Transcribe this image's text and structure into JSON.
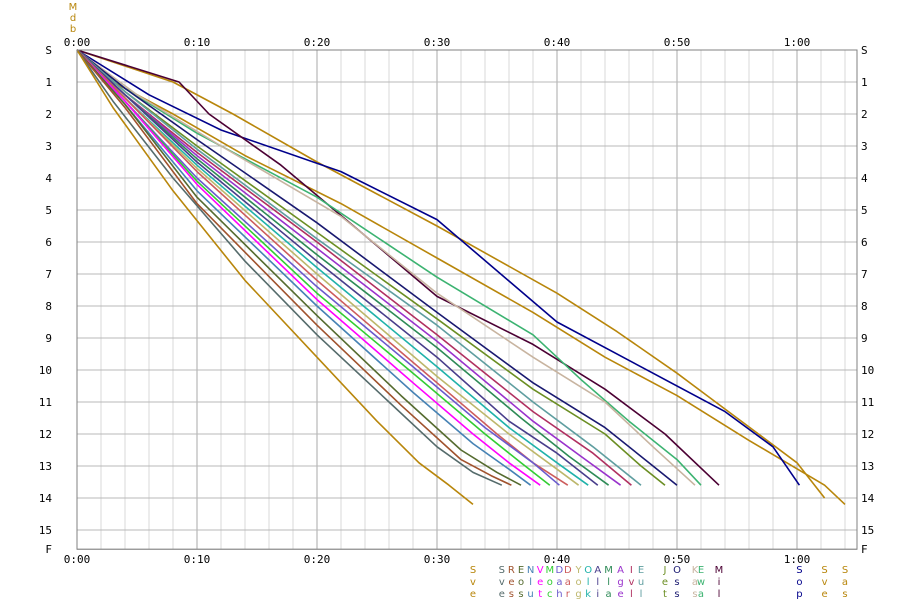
{
  "chart_data": {
    "type": "line",
    "title": "",
    "xlabel": "",
    "ylabel": "",
    "x_axis": {
      "unit": "minutes",
      "range": [
        0,
        65
      ],
      "ticks": [
        {
          "value": 0,
          "label": "0:00"
        },
        {
          "value": 10,
          "label": "0:10"
        },
        {
          "value": 20,
          "label": "0:20"
        },
        {
          "value": 30,
          "label": "0:30"
        },
        {
          "value": 40,
          "label": "0:40"
        },
        {
          "value": 50,
          "label": "0:50"
        },
        {
          "value": 60,
          "label": "1:00"
        }
      ],
      "minor_step": 2
    },
    "y_axis": {
      "range": [
        0,
        15.6
      ],
      "ticks": [
        {
          "value": 0,
          "label": "S"
        },
        {
          "value": 1,
          "label": "1"
        },
        {
          "value": 2,
          "label": "2"
        },
        {
          "value": 3,
          "label": "3"
        },
        {
          "value": 4,
          "label": "4"
        },
        {
          "value": 5,
          "label": "5"
        },
        {
          "value": 6,
          "label": "6"
        },
        {
          "value": 7,
          "label": "7"
        },
        {
          "value": 8,
          "label": "8"
        },
        {
          "value": 9,
          "label": "9"
        },
        {
          "value": 10,
          "label": "10"
        },
        {
          "value": 11,
          "label": "11"
        },
        {
          "value": 12,
          "label": "12"
        },
        {
          "value": 13,
          "label": "13"
        },
        {
          "value": 14,
          "label": "14"
        },
        {
          "value": 15,
          "label": "15"
        },
        {
          "value": 15.6,
          "label": "F"
        }
      ]
    },
    "grid": true,
    "top_marker_text": [
      "M",
      "d",
      "b"
    ],
    "series": [
      {
        "name": "Svensson",
        "label": [
          "S",
          "v",
          "e"
        ],
        "color": "#b8860b",
        "x": [
          0,
          8,
          13,
          20,
          30,
          40,
          45,
          50,
          55,
          60,
          62.3
        ],
        "y": [
          0,
          1,
          2,
          3.5,
          5.5,
          7.6,
          8.8,
          10.1,
          11.5,
          12.9,
          14
        ]
      },
      {
        "name": "Sas",
        "label": [
          "S",
          "a",
          "s"
        ],
        "color": "#b8860b",
        "x": [
          0,
          3,
          8,
          14,
          22,
          30,
          38,
          44,
          50,
          56,
          62.3,
          64
        ],
        "y": [
          0,
          1,
          2,
          3.3,
          4.8,
          6.5,
          8.2,
          9.6,
          10.8,
          12.2,
          13.6,
          14.2
        ]
      },
      {
        "name": "Sop",
        "label": [
          "S",
          "o",
          "p"
        ],
        "color": "#00008b",
        "x": [
          0,
          6,
          12,
          22,
          30,
          40,
          48,
          54,
          58,
          60.2
        ],
        "y": [
          0,
          1.4,
          2.5,
          3.8,
          5.3,
          8.5,
          10.1,
          11.3,
          12.4,
          13.6
        ]
      },
      {
        "name": "Mil",
        "label": [
          "M",
          "i",
          "l"
        ],
        "color": "#4b0033",
        "x": [
          0,
          8.5,
          11,
          17,
          24,
          30,
          38,
          44,
          49,
          53.5
        ],
        "y": [
          0,
          1,
          2,
          3.6,
          5.8,
          7.7,
          9.2,
          10.6,
          12,
          13.6
        ]
      },
      {
        "name": "Ewa",
        "label": [
          "E",
          "w",
          "a"
        ],
        "color": "#3cb371",
        "x": [
          0,
          4,
          10,
          20,
          30,
          38,
          42,
          46,
          50,
          52
        ],
        "y": [
          0,
          1.2,
          2.6,
          4.6,
          7.1,
          8.9,
          10.3,
          11.6,
          12.8,
          13.6
        ]
      },
      {
        "name": "Kas",
        "label": [
          "K",
          "a",
          "s"
        ],
        "color": "#c8b4a0",
        "x": [
          0,
          5,
          12,
          22,
          30,
          38,
          44,
          48,
          51.5
        ],
        "y": [
          0,
          1.4,
          3,
          5.2,
          7.6,
          9.6,
          11,
          12.4,
          13.6
        ]
      },
      {
        "name": "Oss",
        "label": [
          "O",
          "s",
          "s"
        ],
        "color": "#191970",
        "x": [
          0,
          4,
          10,
          20,
          30,
          38,
          44,
          48,
          50
        ],
        "y": [
          0,
          1.2,
          2.8,
          5.4,
          8.2,
          10.4,
          11.8,
          13,
          13.6
        ]
      },
      {
        "name": "Jet",
        "label": [
          "J",
          "e",
          "t"
        ],
        "color": "#6b8e23",
        "x": [
          0,
          4,
          10,
          20,
          30,
          38,
          44,
          47,
          49
        ],
        "y": [
          0,
          1.3,
          3,
          5.7,
          8.4,
          10.6,
          12,
          13,
          13.6
        ]
      },
      {
        "name": "Eul",
        "label": [
          "E",
          "u",
          "l"
        ],
        "color": "#5f9ea0",
        "x": [
          0,
          4,
          10,
          20,
          30,
          38,
          43,
          47
        ],
        "y": [
          0,
          1.3,
          3.1,
          5.9,
          8.6,
          11,
          12.4,
          13.6
        ]
      },
      {
        "name": "Ivl",
        "label": [
          "I",
          "v",
          "l"
        ],
        "color": "#b03060",
        "x": [
          0,
          4,
          10,
          20,
          30,
          38,
          43,
          46.2
        ],
        "y": [
          0,
          1.4,
          3.2,
          6,
          8.9,
          11.3,
          12.6,
          13.6
        ]
      },
      {
        "name": "Age",
        "label": [
          "A",
          "g",
          "e"
        ],
        "color": "#9932cc",
        "x": [
          0,
          4,
          10,
          20,
          30,
          38,
          42,
          45.3
        ],
        "y": [
          0,
          1.4,
          3.3,
          6.2,
          9.1,
          11.6,
          12.7,
          13.6
        ]
      },
      {
        "name": "Mla",
        "label": [
          "M",
          "l",
          "a"
        ],
        "color": "#2e8b57",
        "x": [
          0,
          4,
          10,
          20,
          30,
          37,
          41,
          44.3
        ],
        "y": [
          0,
          1.4,
          3.4,
          6.4,
          9.3,
          11.5,
          12.7,
          13.6
        ]
      },
      {
        "name": "Ali",
        "label": [
          "A",
          "l",
          "i"
        ],
        "color": "#483d8b",
        "x": [
          0,
          4,
          10,
          20,
          30,
          36,
          40,
          43.4
        ],
        "y": [
          0,
          1.4,
          3.5,
          6.6,
          9.6,
          11.6,
          12.6,
          13.6
        ]
      },
      {
        "name": "Olk",
        "label": [
          "O",
          "l",
          "k"
        ],
        "color": "#20b2aa",
        "x": [
          0,
          4,
          10,
          20,
          30,
          36,
          40,
          42.6
        ],
        "y": [
          0,
          1.5,
          3.6,
          6.8,
          9.9,
          11.8,
          12.9,
          13.6
        ]
      },
      {
        "name": "Yog",
        "label": [
          "Y",
          "o",
          "g"
        ],
        "color": "#bdb76b",
        "x": [
          0,
          4,
          10,
          20,
          30,
          36,
          40,
          41.8
        ],
        "y": [
          0,
          1.5,
          3.7,
          7,
          10.2,
          12,
          13.1,
          13.6
        ]
      },
      {
        "name": "Dar",
        "label": [
          "D",
          "a",
          "r"
        ],
        "color": "#cd5c5c",
        "x": [
          0,
          4,
          10,
          20,
          30,
          35,
          38,
          40.9
        ],
        "y": [
          0,
          1.5,
          3.8,
          7.2,
          10.4,
          12,
          12.9,
          13.6
        ]
      },
      {
        "name": "Dah",
        "label": [
          "D",
          "a",
          "h"
        ],
        "color": "#6a5acd",
        "x": [
          0,
          4,
          10,
          20,
          28,
          34,
          38,
          40.2
        ],
        "y": [
          0,
          1.6,
          4,
          7.4,
          9.9,
          11.8,
          12.9,
          13.6
        ]
      },
      {
        "name": "Moc",
        "label": [
          "M",
          "o",
          "c"
        ],
        "color": "#32cd32",
        "x": [
          0,
          4,
          10,
          20,
          28,
          34,
          37,
          39.4
        ],
        "y": [
          0,
          1.6,
          4.1,
          7.6,
          10.1,
          12,
          12.9,
          13.6
        ]
      },
      {
        "name": "Vet",
        "label": [
          "V",
          "e",
          "t"
        ],
        "color": "#ff00ff",
        "x": [
          0,
          4,
          10,
          20,
          28,
          33,
          36,
          38.6
        ],
        "y": [
          0,
          1.6,
          4.2,
          7.8,
          10.4,
          12,
          12.9,
          13.6
        ]
      },
      {
        "name": "Nlu",
        "label": [
          "N",
          "l",
          "u"
        ],
        "color": "#4682b4",
        "x": [
          0,
          4,
          10,
          20,
          28,
          33,
          36,
          37.8
        ],
        "y": [
          0,
          1.7,
          4.4,
          8,
          10.7,
          12.3,
          13.1,
          13.6
        ]
      },
      {
        "name": "Eos",
        "label": [
          "E",
          "o",
          "s"
        ],
        "color": "#556b2f",
        "x": [
          0,
          4,
          10,
          20,
          27,
          32,
          35,
          37
        ],
        "y": [
          0,
          1.7,
          4.6,
          8.3,
          10.8,
          12.5,
          13.2,
          13.6
        ]
      },
      {
        "name": "Res",
        "label": [
          "R",
          "e",
          "s"
        ],
        "color": "#a0522d",
        "x": [
          0,
          4,
          10,
          20,
          27,
          32,
          34.5,
          36.2
        ],
        "y": [
          0,
          1.8,
          4.8,
          8.6,
          11.1,
          12.8,
          13.3,
          13.6
        ]
      },
      {
        "name": "Sve",
        "label": [
          "S",
          "v",
          "e"
        ],
        "color": "#556b6b",
        "x": [
          0,
          3,
          8,
          14,
          20,
          26,
          30,
          33,
          35.4
        ],
        "y": [
          0,
          1.6,
          4,
          6.6,
          8.9,
          11,
          12.4,
          13.2,
          13.6
        ]
      },
      {
        "name": "Sve2",
        "label": [
          "S",
          "v",
          "e"
        ],
        "color": "#b8860b",
        "x": [
          0,
          3,
          8,
          14,
          20,
          25,
          28.5,
          31,
          33
        ],
        "y": [
          0,
          1.8,
          4.4,
          7.2,
          9.6,
          11.6,
          12.9,
          13.6,
          14.2
        ]
      }
    ]
  }
}
